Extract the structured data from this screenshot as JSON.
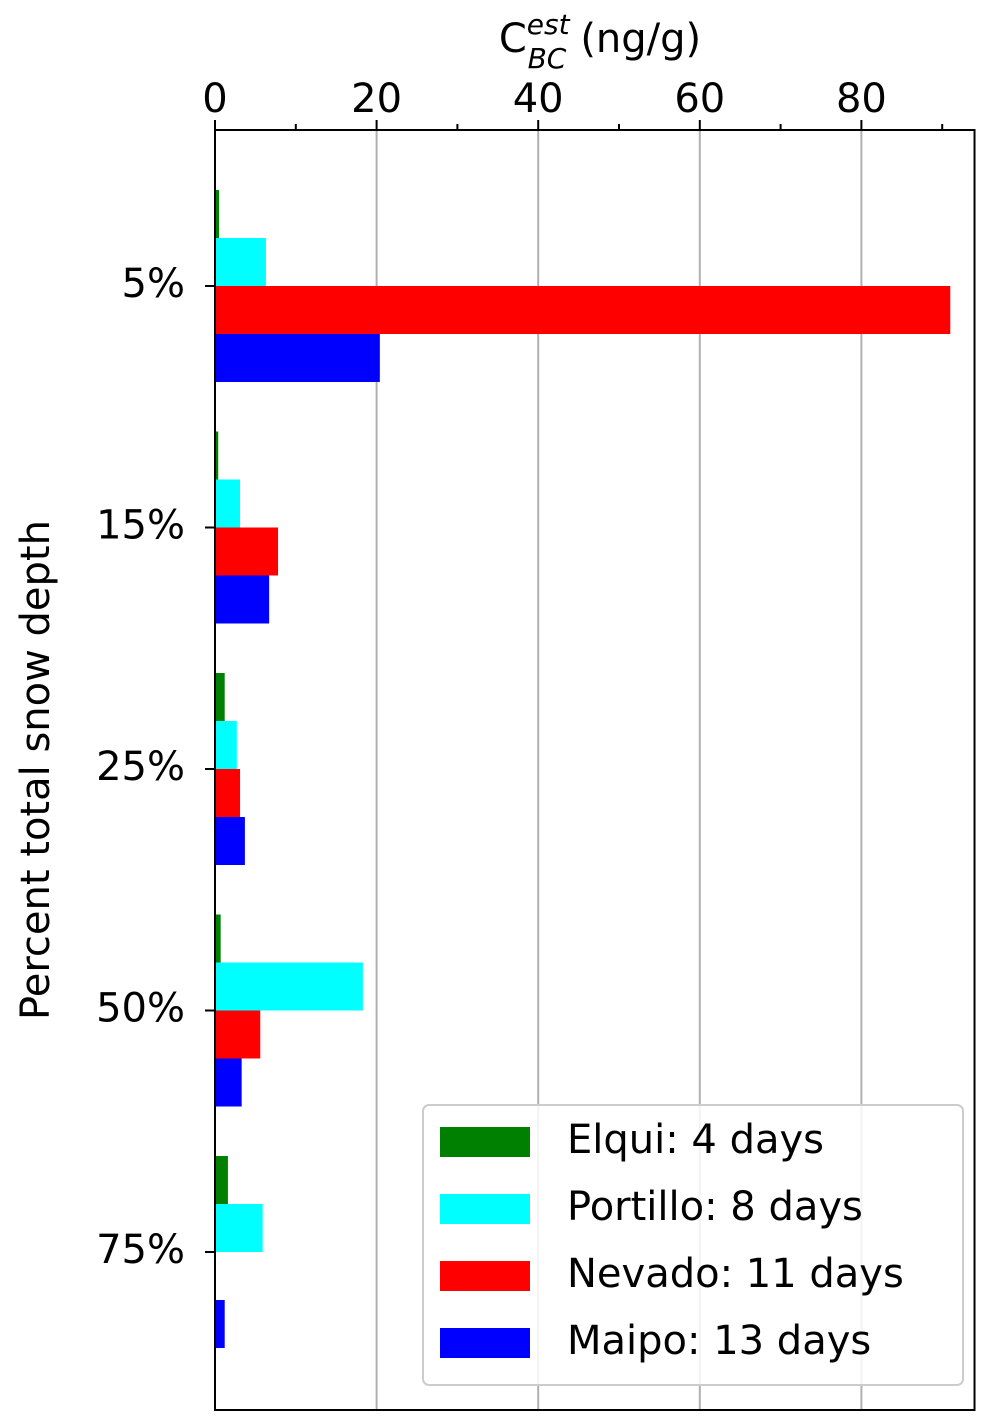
{
  "chart_data": {
    "type": "barh",
    "xlabel": {
      "base": "C",
      "sub": "BC",
      "sup": "est",
      "unit": "(ng/g)"
    },
    "ylabel": "Percent total snow depth",
    "categories": [
      "5%",
      "15%",
      "25%",
      "50%",
      "75%"
    ],
    "series": [
      {
        "name": "Elqui: 4 days",
        "color": "#008000",
        "values": [
          0.5,
          0.4,
          1.2,
          0.7,
          1.6
        ]
      },
      {
        "name": "Portillo: 8 days",
        "color": "#00ffff",
        "values": [
          6.3,
          3.1,
          2.7,
          18.3,
          5.9
        ]
      },
      {
        "name": "Nevado: 11 days",
        "color": "#ff0000",
        "values": [
          91,
          7.8,
          3.1,
          5.6,
          0
        ]
      },
      {
        "name": "Maipo: 13 days",
        "color": "#0000ff",
        "values": [
          20.4,
          6.7,
          3.7,
          3.3,
          1.2
        ]
      }
    ],
    "xlim": [
      0,
      94
    ],
    "xticks": [
      0,
      20,
      40,
      60,
      80
    ],
    "xminorticks": [
      10,
      30,
      50,
      70,
      90
    ],
    "grid": true,
    "legend": "lower right"
  }
}
